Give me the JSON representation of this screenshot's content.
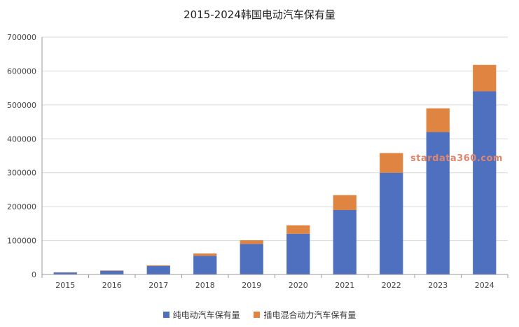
{
  "chart_data": {
    "type": "bar",
    "stacked": true,
    "title": "2015-2024韩国电动汽车保有量",
    "categories": [
      "2015",
      "2016",
      "2017",
      "2018",
      "2019",
      "2020",
      "2021",
      "2022",
      "2023",
      "2024"
    ],
    "series": [
      {
        "name": "纯电动汽车保有量",
        "color": "#4f6fbf",
        "values": [
          6000,
          11000,
          25000,
          55000,
          90000,
          120000,
          190000,
          300000,
          420000,
          540000
        ]
      },
      {
        "name": "插电混合动力汽车保有量",
        "color": "#df8441",
        "values": [
          500,
          1000,
          2000,
          7000,
          11000,
          25000,
          44000,
          58000,
          70000,
          78000
        ]
      }
    ],
    "ylim": [
      0,
      700000
    ],
    "yticks": [
      "0",
      "100000",
      "200000",
      "300000",
      "400000",
      "500000",
      "600000",
      "700000"
    ],
    "grid": true,
    "legend_position": "bottom"
  },
  "watermark": "stardata360.com"
}
